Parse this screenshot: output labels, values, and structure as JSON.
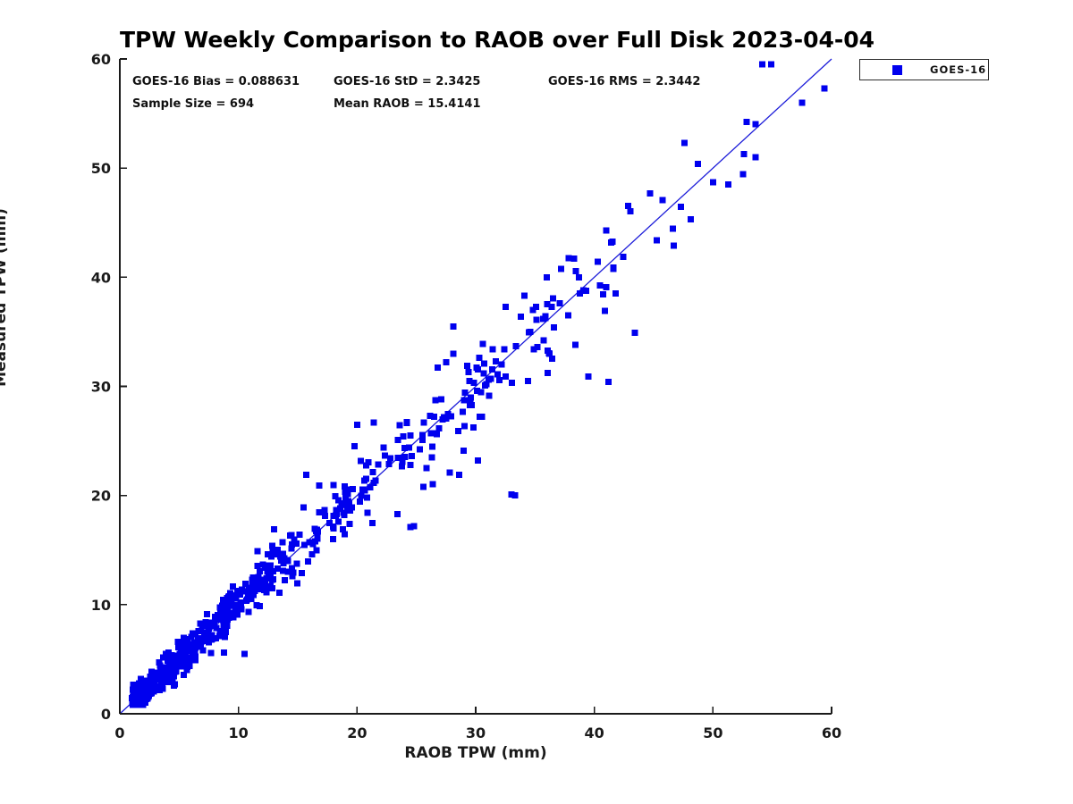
{
  "title": "TPW Weekly Comparison to RAOB over Full Disk 2023-04-04",
  "stats": {
    "bias": "GOES-16 Bias = 0.088631",
    "std": "GOES-16 StD = 2.3425",
    "rms": "GOES-16 RMS = 2.3442",
    "sample_size": "Sample Size = 694",
    "mean_raob": "Mean RAOB = 15.4141"
  },
  "legend": {
    "label": "GOES-16",
    "marker_color": "#0000ee"
  },
  "colors": {
    "marker": "#0000ee",
    "identity_line": "#1c1cd9",
    "axis": "#1a1a1a",
    "text": "#111111",
    "background": "#ffffff"
  },
  "chart_data": {
    "type": "scatter",
    "title": "TPW Weekly Comparison to RAOB over Full Disk 2023-04-04",
    "xlabel": "RAOB TPW (mm)",
    "ylabel": "Measured TPW (mm)",
    "xlim": [
      0,
      60
    ],
    "ylim": [
      0,
      60
    ],
    "xticks": [
      0,
      10,
      20,
      30,
      40,
      50,
      60
    ],
    "yticks": [
      0,
      10,
      20,
      30,
      40,
      50,
      60
    ],
    "grid": false,
    "legend_position": "top-right-outside",
    "series": [
      {
        "name": "GOES-16",
        "marker": "square",
        "marker_size_px": 7,
        "color": "#0000ee",
        "n_points": 694
      }
    ],
    "identity_line": {
      "from": [
        0,
        0
      ],
      "to": [
        60,
        60
      ],
      "color": "#1c1cd9"
    },
    "stats_values": {
      "bias": 0.088631,
      "std": 2.3425,
      "rms": 2.3442,
      "sample_size": 694,
      "mean_raob": 15.4141
    },
    "key_points": [
      [
        59.4,
        57.3
      ],
      [
        57.5,
        56.0
      ],
      [
        47.6,
        52.3
      ],
      [
        52.6,
        51.3
      ],
      [
        53.6,
        51.0
      ],
      [
        50.0,
        48.7
      ],
      [
        51.3,
        48.5
      ],
      [
        44.7,
        47.7
      ],
      [
        46.7,
        42.9
      ],
      [
        41.0,
        44.3
      ],
      [
        40.3,
        41.4
      ],
      [
        36.0,
        40.0
      ],
      [
        38.7,
        40.0
      ],
      [
        39.1,
        38.8
      ],
      [
        41.0,
        39.1
      ],
      [
        41.8,
        38.5
      ],
      [
        40.9,
        36.9
      ],
      [
        43.4,
        34.9
      ],
      [
        41.2,
        30.4
      ],
      [
        39.5,
        30.9
      ],
      [
        38.4,
        33.8
      ],
      [
        36.4,
        37.3
      ],
      [
        37.1,
        37.6
      ],
      [
        35.7,
        36.2
      ],
      [
        34.6,
        35.0
      ],
      [
        33.8,
        36.4
      ],
      [
        35.1,
        37.3
      ],
      [
        36.6,
        35.4
      ],
      [
        37.8,
        36.5
      ],
      [
        36.2,
        33.0
      ],
      [
        34.9,
        33.4
      ],
      [
        33.4,
        33.7
      ],
      [
        32.4,
        33.4
      ],
      [
        31.7,
        32.3
      ],
      [
        30.6,
        33.9
      ],
      [
        28.1,
        35.5
      ],
      [
        27.5,
        32.2
      ],
      [
        26.8,
        31.7
      ],
      [
        29.3,
        31.9
      ],
      [
        31.1,
        30.6
      ],
      [
        33.0,
        20.1
      ],
      [
        33.3,
        20.0
      ],
      [
        24.5,
        17.1
      ],
      [
        24.8,
        17.2
      ],
      [
        15.7,
        21.9
      ],
      [
        10.5,
        5.5
      ],
      [
        8.8,
        5.6
      ],
      [
        23.4,
        18.3
      ],
      [
        25.6,
        20.8
      ],
      [
        27.8,
        22.1
      ],
      [
        28.6,
        21.9
      ],
      [
        30.2,
        23.2
      ],
      [
        26.3,
        23.5
      ],
      [
        29.0,
        24.1
      ],
      [
        20.0,
        26.5
      ],
      [
        21.4,
        26.7
      ],
      [
        19.8,
        24.5
      ],
      [
        16.8,
        20.9
      ],
      [
        13.0,
        16.9
      ],
      [
        11.6,
        14.9
      ],
      [
        15.5,
        18.9
      ]
    ],
    "synthesis": {
      "seed": 20230404,
      "x_quantiles": [
        [
          0.0,
          1.0
        ],
        [
          0.13,
          2.2
        ],
        [
          0.3,
          4.4
        ],
        [
          0.46,
          6.9
        ],
        [
          0.58,
          10.2
        ],
        [
          0.68,
          15.0
        ],
        [
          0.77,
          20.5
        ],
        [
          0.85,
          26.0
        ],
        [
          0.92,
          31.5
        ],
        [
          0.96,
          36.0
        ],
        [
          0.985,
          42.0
        ],
        [
          1.0,
          55.0
        ]
      ],
      "bias": 0.0886,
      "sigma_base": 0.55,
      "sigma_slope": 0.05,
      "x_range": [
        1.0,
        59.6
      ],
      "y_range": [
        0.8,
        59.5
      ]
    }
  }
}
